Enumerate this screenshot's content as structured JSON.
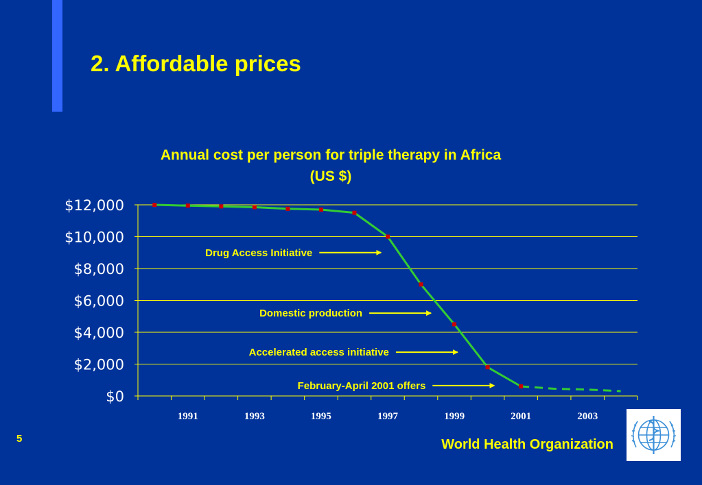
{
  "slide": {
    "title": "2. Affordable prices",
    "page_number": "5",
    "organization": "World Health Organization",
    "logo_icon": "who-emblem-icon"
  },
  "colors": {
    "background": "#003399",
    "accent_bar": "#3366ff",
    "title": "#ffff00",
    "line": "#33cc33",
    "marker": "#cc0000",
    "annotation_text": "#ffff00",
    "arrow": "#ffff00",
    "axis": "#ffff00",
    "tick_label": "#ffffff"
  },
  "chart_data": {
    "type": "line",
    "title_line1": "Annual cost per person for triple therapy in Africa",
    "title_line2": "(US $)",
    "xlabel": "",
    "ylabel": "",
    "ylim": [
      0,
      12000
    ],
    "y_ticks": [
      0,
      2000,
      4000,
      6000,
      8000,
      10000,
      12000
    ],
    "y_tick_labels": [
      "$0",
      "$2,000",
      "$4,000",
      "$6,000",
      "$8,000",
      "$10,000",
      "$12,000"
    ],
    "x_tick_labels": [
      "1991",
      "1993",
      "1995",
      "1997",
      "1999",
      "2001",
      "2003"
    ],
    "grid": true,
    "series": [
      {
        "style": "solid",
        "x": [
          1990,
          1991,
          1992,
          1993,
          1994,
          1995,
          1996,
          1997,
          1998,
          1999,
          2000,
          2001
        ],
        "y": [
          12000,
          11950,
          11900,
          11850,
          11750,
          11700,
          11500,
          10000,
          7000,
          4500,
          1800,
          600
        ]
      },
      {
        "style": "dashed",
        "x": [
          2001,
          2002,
          2003,
          2004
        ],
        "y": [
          600,
          450,
          400,
          300
        ]
      }
    ],
    "annotations": [
      {
        "text": "Drug Access Initiative",
        "x": 1996.8,
        "y": 9000
      },
      {
        "text": "Domestic production",
        "x": 1998.3,
        "y": 5200
      },
      {
        "text": "Accelerated access initiative",
        "x": 1999.1,
        "y": 2750
      },
      {
        "text": "February-April 2001 offers",
        "x": 2000.2,
        "y": 650
      }
    ]
  }
}
